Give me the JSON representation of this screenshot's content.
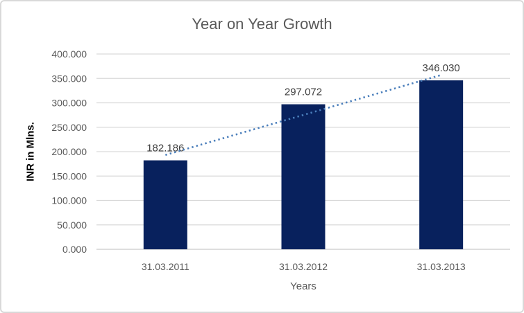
{
  "chart_data": {
    "type": "bar",
    "title": "Year on Year Growth",
    "xlabel": "Years",
    "ylabel": "INR in Mlns.",
    "categories": [
      "31.03.2011",
      "31.03.2012",
      "31.03.2013"
    ],
    "values": [
      182.186,
      297.072,
      346.03
    ],
    "value_labels": [
      "182.186",
      "297.072",
      "346.030"
    ],
    "ylim": [
      0,
      400
    ],
    "ytick_step": 50,
    "ytick_labels": [
      "0.000",
      "50.000",
      "100.000",
      "150.000",
      "200.000",
      "250.000",
      "300.000",
      "350.000",
      "400.000"
    ],
    "grid": true,
    "legend": "none",
    "trendline": {
      "type": "linear",
      "style": "dotted"
    },
    "colors": {
      "bar": "#08215d",
      "trendline": "#4a7ebb",
      "gridline": "#d9d9d9",
      "axis_line": "#c9c9c9",
      "title_text": "#595959",
      "tick_text": "#595959",
      "data_label_text": "#404040",
      "y_title_text": "#000000"
    }
  }
}
